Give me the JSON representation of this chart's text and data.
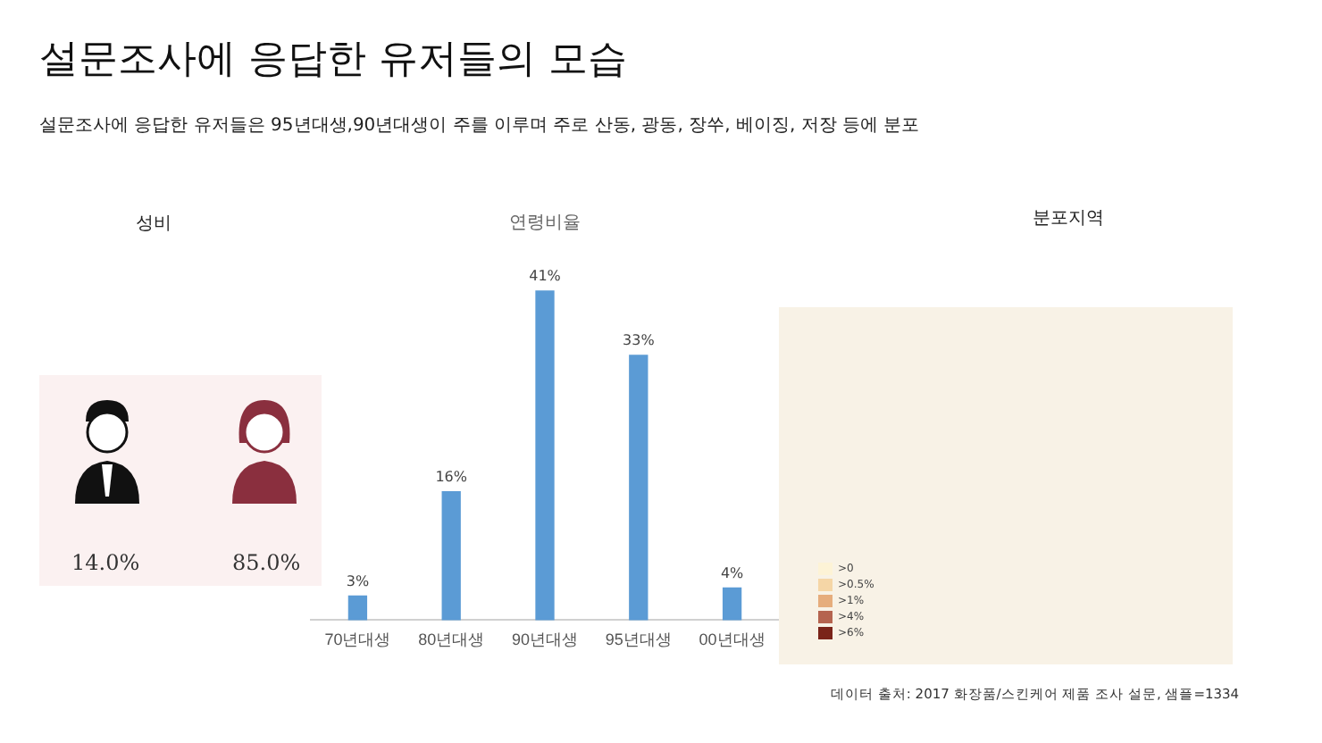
{
  "chart_data": [
    {
      "type": "other",
      "title": "설문조사에 응답한 유저들의 모습",
      "subtitle": "설문조사에 응답한 유저들은 95년대생,90년대생이 주를 이루며 주로 산동, 광동, 장쑤, 베이징, 저장 등에 분포"
    },
    {
      "type": "other",
      "title": "성비",
      "annotations": [
        "14.0%",
        "85.0%"
      ]
    },
    {
      "type": "bar",
      "title": "연령비율",
      "categories": [
        "70년대생",
        "80년대생",
        "90년대생",
        "95년대생",
        "00년대생"
      ],
      "values": [
        3,
        16,
        41,
        33,
        4
      ],
      "value_labels": [
        "3%",
        "16%",
        "41%",
        "33%",
        "4%"
      ],
      "color": "#5b9bd5",
      "grid": false,
      "legend": false
    },
    {
      "type": "other",
      "title": "분포지역",
      "annotations": [
        ">0",
        ">0.5%",
        ">1%",
        ">4%",
        ">6%",
        "데이터 출처: 2017 화장품/스킨케어 제품 조사 설문, 샘플=1334"
      ]
    }
  ]
}
